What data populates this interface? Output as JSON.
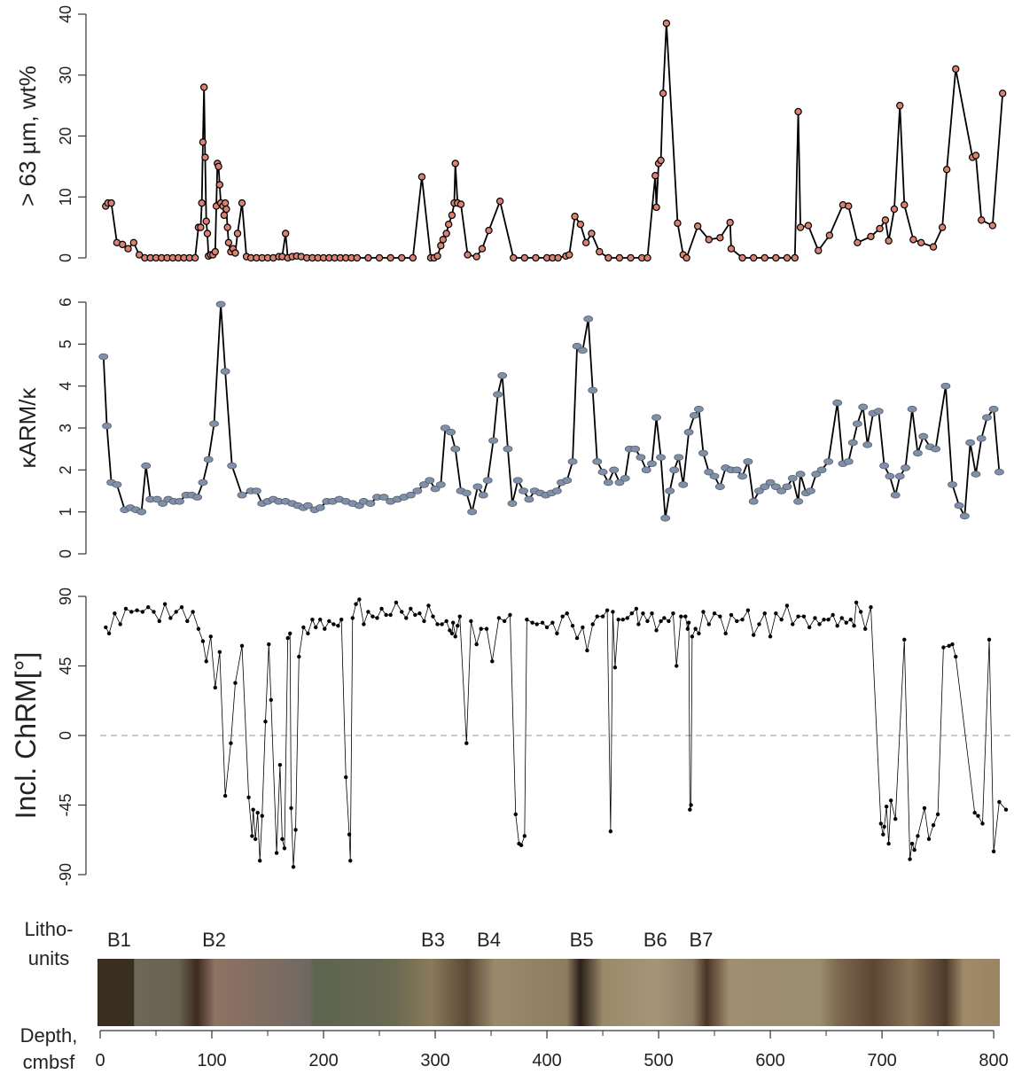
{
  "chart_data": [
    {
      "type": "line",
      "ylabel": "> 63 µm, wt%",
      "marker": "circle",
      "color": "#d9826f",
      "line_color": "#000000",
      "xlim": [
        0,
        815
      ],
      "ylim": [
        0,
        40
      ],
      "yticks": [
        0,
        10,
        20,
        30,
        40
      ],
      "x": [
        5,
        7,
        10,
        15,
        20,
        25,
        30,
        35,
        40,
        45,
        50,
        55,
        60,
        65,
        70,
        75,
        80,
        85,
        88,
        90,
        91,
        92,
        93,
        94,
        95,
        96,
        97,
        99,
        101,
        103,
        104,
        105,
        106,
        107,
        108,
        110,
        111,
        112,
        113,
        114,
        115,
        117,
        119,
        121,
        123,
        127,
        131,
        135,
        140,
        145,
        150,
        155,
        160,
        163,
        166,
        168,
        172,
        176,
        180,
        185,
        190,
        195,
        200,
        205,
        210,
        215,
        220,
        225,
        230,
        240,
        250,
        260,
        270,
        280,
        288,
        296,
        299,
        302,
        305,
        307,
        310,
        312,
        315,
        317,
        318,
        320,
        323,
        329,
        337,
        342,
        348,
        358,
        370,
        380,
        390,
        400,
        405,
        410,
        417,
        420,
        425,
        430,
        435,
        440,
        447,
        455,
        465,
        475,
        485,
        490,
        497,
        498,
        500,
        502,
        504,
        507,
        517,
        522,
        525,
        535,
        545,
        555,
        564,
        565,
        575,
        585,
        595,
        605,
        615,
        622,
        625,
        627,
        634,
        643,
        653,
        665,
        670,
        678,
        690,
        698,
        703,
        706,
        711,
        716,
        720,
        728,
        735,
        746,
        754,
        758,
        766,
        781,
        784,
        789,
        799,
        808
      ],
      "values": [
        8.5,
        9,
        9,
        2.5,
        2.2,
        1.5,
        2.5,
        0.5,
        0,
        0,
        0,
        0,
        0,
        0,
        0,
        0,
        0,
        0,
        5,
        5,
        9,
        19,
        28,
        16.5,
        6,
        4,
        0.3,
        0.5,
        0.5,
        1,
        8.5,
        15.5,
        15,
        12,
        9,
        8.5,
        7,
        9,
        8,
        5,
        2.5,
        1,
        1.5,
        0.8,
        4,
        9,
        0.2,
        0,
        0,
        0,
        0,
        0,
        0.2,
        0.2,
        4,
        0,
        0.2,
        0.3,
        0.2,
        0,
        0,
        0,
        0,
        0,
        0,
        0,
        0,
        0,
        0,
        0,
        0,
        0,
        0,
        0,
        13.3,
        0,
        0,
        0.3,
        2,
        3,
        4,
        5.5,
        7,
        9,
        15.5,
        9,
        8.8,
        0.5,
        0.2,
        1.5,
        4.5,
        9.3,
        0,
        0,
        0,
        0,
        0,
        0,
        0.3,
        0.5,
        6.8,
        5.5,
        2.5,
        4,
        1,
        0,
        0,
        0,
        0,
        0,
        13.5,
        8.3,
        15.5,
        16,
        27,
        38.5,
        5.7,
        0.5,
        0,
        5.2,
        3,
        3.3,
        5.8,
        1.5,
        0,
        0,
        0,
        0,
        0,
        0,
        24,
        5,
        5.3,
        1.2,
        3.7,
        8.7,
        8.5,
        2.5,
        3.5,
        4.8,
        6.2,
        2.8,
        8,
        25,
        8.7,
        3,
        2.5,
        1.8,
        5,
        14.5,
        31,
        16.5,
        16.8,
        6.2,
        5.3,
        27
      ]
    },
    {
      "type": "line",
      "ylabel": "κARM/κ",
      "marker": "ellipse",
      "color": "#8090a8",
      "line_color": "#000000",
      "xlim": [
        0,
        815
      ],
      "ylim": [
        0,
        6
      ],
      "yticks": [
        0,
        1,
        2,
        3,
        4,
        5,
        6
      ],
      "x": [
        3,
        6,
        10,
        15,
        22,
        27,
        32,
        37,
        41,
        45,
        51,
        56,
        61,
        66,
        71,
        77,
        82,
        87,
        92,
        97,
        102,
        108,
        112,
        118,
        127,
        135,
        140,
        145,
        150,
        155,
        160,
        166,
        172,
        177,
        182,
        186,
        192,
        197,
        203,
        208,
        214,
        220,
        226,
        232,
        236,
        242,
        248,
        254,
        260,
        266,
        272,
        278,
        284,
        290,
        295,
        300,
        305,
        309,
        314,
        318,
        323,
        328,
        333,
        338,
        343,
        347,
        352,
        356,
        360,
        365,
        369,
        374,
        379,
        384,
        389,
        394,
        399,
        404,
        409,
        413,
        418,
        423,
        427,
        432,
        437,
        441,
        445,
        450,
        455,
        460,
        465,
        470,
        474,
        479,
        484,
        489,
        494,
        498,
        502,
        506,
        510,
        514,
        518,
        522,
        527,
        532,
        536,
        540,
        545,
        550,
        555,
        560,
        565,
        570,
        575,
        580,
        585,
        590,
        595,
        600,
        605,
        610,
        615,
        620,
        625,
        627,
        632,
        636,
        641,
        646,
        652,
        660,
        665,
        670,
        674,
        678,
        683,
        687,
        692,
        697,
        702,
        707,
        712,
        716,
        721,
        727,
        732,
        737,
        743,
        748,
        757,
        763,
        769,
        774,
        779,
        784,
        789,
        794,
        800,
        805
      ],
      "values": [
        4.7,
        3.05,
        1.7,
        1.65,
        1.05,
        1.1,
        1.05,
        1.0,
        2.1,
        1.3,
        1.3,
        1.2,
        1.3,
        1.25,
        1.25,
        1.4,
        1.4,
        1.35,
        1.7,
        2.25,
        3.1,
        5.95,
        4.35,
        2.1,
        1.4,
        1.5,
        1.5,
        1.2,
        1.25,
        1.3,
        1.25,
        1.25,
        1.2,
        1.15,
        1.1,
        1.15,
        1.05,
        1.1,
        1.25,
        1.25,
        1.3,
        1.25,
        1.2,
        1.15,
        1.25,
        1.2,
        1.35,
        1.35,
        1.25,
        1.3,
        1.35,
        1.4,
        1.5,
        1.65,
        1.75,
        1.55,
        1.65,
        3.0,
        2.9,
        2.5,
        1.5,
        1.45,
        1.0,
        1.6,
        1.4,
        1.75,
        2.7,
        3.8,
        4.25,
        2.5,
        1.2,
        1.75,
        1.5,
        1.3,
        1.5,
        1.45,
        1.4,
        1.45,
        1.5,
        1.7,
        1.75,
        2.2,
        4.95,
        4.85,
        5.6,
        3.9,
        2.2,
        1.95,
        1.7,
        2.0,
        1.7,
        1.8,
        2.5,
        2.5,
        2.3,
        2.0,
        2.15,
        3.25,
        2.3,
        0.85,
        1.5,
        2.0,
        2.3,
        1.65,
        2.9,
        3.3,
        3.45,
        2.4,
        1.95,
        1.85,
        1.6,
        2.05,
        2.0,
        2.0,
        1.85,
        2.2,
        1.25,
        1.5,
        1.6,
        1.7,
        1.6,
        1.5,
        1.6,
        1.8,
        1.25,
        1.9,
        1.45,
        1.5,
        1.9,
        2.0,
        2.2,
        3.6,
        2.15,
        2.2,
        2.65,
        3.1,
        3.5,
        2.6,
        3.35,
        3.4,
        2.1,
        1.85,
        1.4,
        1.85,
        2.05,
        3.45,
        2.4,
        2.8,
        2.55,
        2.5,
        4.0,
        1.65,
        1.15,
        0.9,
        2.65,
        1.9,
        2.75,
        3.25,
        3.45,
        1.95
      ]
    },
    {
      "type": "line",
      "ylabel": "Incl. ChRM[°]",
      "marker": "dot",
      "color": "#000000",
      "line_color": "#000000",
      "reference_line": 0,
      "xlim": [
        0,
        815
      ],
      "ylim": [
        -90,
        90
      ],
      "yticks": [
        -90,
        -45,
        0,
        45,
        90
      ],
      "x": [
        5,
        8,
        13,
        18,
        23,
        28,
        33,
        38,
        43,
        48,
        53,
        58,
        63,
        68,
        73,
        78,
        83,
        88,
        92,
        95,
        99,
        103,
        107,
        112,
        117,
        121,
        127,
        133,
        136,
        137,
        139,
        141,
        143,
        145,
        148,
        151,
        153,
        158,
        161,
        163,
        165,
        168,
        170,
        171,
        173,
        175,
        178,
        182,
        186,
        190,
        193,
        197,
        201,
        205,
        209,
        213,
        216,
        220,
        223,
        224,
        226,
        229,
        232,
        236,
        240,
        244,
        248,
        252,
        256,
        260,
        265,
        270,
        274,
        278,
        282,
        286,
        290,
        294,
        298,
        302,
        306,
        310,
        313,
        315,
        316,
        318,
        320,
        322,
        328,
        332,
        337,
        341,
        346,
        351,
        357,
        362,
        367,
        372,
        375,
        377,
        380,
        382,
        387,
        391,
        396,
        400,
        405,
        409,
        414,
        418,
        423,
        427,
        432,
        436,
        441,
        445,
        450,
        454,
        457,
        459,
        461,
        464,
        468,
        472,
        476,
        480,
        482,
        486,
        490,
        494,
        498,
        502,
        505,
        509,
        513,
        516,
        520,
        524,
        526,
        527,
        528,
        529,
        530,
        533,
        536,
        540,
        545,
        550,
        555,
        560,
        565,
        570,
        575,
        580,
        585,
        590,
        595,
        600,
        605,
        610,
        615,
        620,
        625,
        630,
        635,
        640,
        644,
        648,
        652,
        656,
        660,
        664,
        668,
        672,
        675,
        677,
        681,
        685,
        690,
        699,
        701,
        702,
        704,
        706,
        708,
        712,
        720,
        725,
        727,
        729,
        732,
        738,
        742,
        746,
        750,
        755,
        760,
        763,
        766,
        783,
        786,
        790,
        796,
        800,
        805,
        811
      ],
      "values": [
        70,
        66,
        79,
        72,
        82,
        80,
        81,
        80,
        83,
        80,
        74,
        85,
        76,
        80,
        83,
        74,
        80,
        69,
        61,
        48,
        64,
        31,
        54,
        -39,
        -5,
        34,
        58,
        -40,
        -65,
        -48,
        -67,
        -50,
        -81,
        -52,
        9,
        59,
        23,
        -76,
        -19,
        -67,
        -73,
        63,
        66,
        -47,
        -85,
        -61,
        51,
        70,
        66,
        75,
        70,
        75,
        69,
        74,
        72,
        71,
        75,
        -27,
        -64,
        -81,
        76,
        85,
        88,
        72,
        80,
        77,
        76,
        82,
        78,
        78,
        86,
        80,
        76,
        82,
        78,
        79,
        74,
        84,
        77,
        72,
        72,
        74,
        68,
        66,
        73,
        64,
        71,
        77,
        -5,
        74,
        59,
        69,
        69,
        48,
        76,
        74,
        78,
        -51,
        -70,
        -71,
        -65,
        75,
        73,
        72,
        73,
        70,
        73,
        66,
        77,
        79,
        71,
        63,
        70,
        55,
        72,
        77,
        77,
        81,
        -62,
        80,
        44,
        75,
        75,
        76,
        79,
        82,
        72,
        79,
        74,
        79,
        68,
        74,
        76,
        74,
        79,
        45,
        77,
        77,
        69,
        73,
        -48,
        -45,
        64,
        69,
        66,
        80,
        72,
        79,
        77,
        66,
        78,
        74,
        75,
        81,
        65,
        72,
        79,
        64,
        79,
        75,
        84,
        72,
        77,
        77,
        70,
        76,
        72,
        75,
        75,
        78,
        71,
        76,
        73,
        75,
        71,
        86,
        80,
        69,
        83,
        -57,
        -64,
        -59,
        -46,
        -70,
        -42,
        -54,
        62,
        -80,
        -70,
        -74,
        -65,
        -47,
        -67,
        -58,
        -51,
        57,
        58,
        59,
        51,
        -50,
        -52,
        -57,
        62,
        -75,
        -43,
        -48
      ]
    },
    {
      "type": "core",
      "unit_title": [
        "Litho-",
        "units"
      ],
      "xlabel": [
        "Depth,",
        "cmbsf"
      ],
      "xlim": [
        0,
        815
      ],
      "xticks": [
        0,
        100,
        200,
        300,
        400,
        500,
        600,
        700,
        800
      ],
      "xminor": [
        50,
        150,
        250,
        350,
        450,
        550,
        650,
        750
      ],
      "units": [
        {
          "label": "B1",
          "depth": 17
        },
        {
          "label": "B2",
          "depth": 102
        },
        {
          "label": "B3",
          "depth": 298
        },
        {
          "label": "B4",
          "depth": 348
        },
        {
          "label": "B5",
          "depth": 431
        },
        {
          "label": "B6",
          "depth": 497
        },
        {
          "label": "B7",
          "depth": 538
        }
      ]
    }
  ]
}
